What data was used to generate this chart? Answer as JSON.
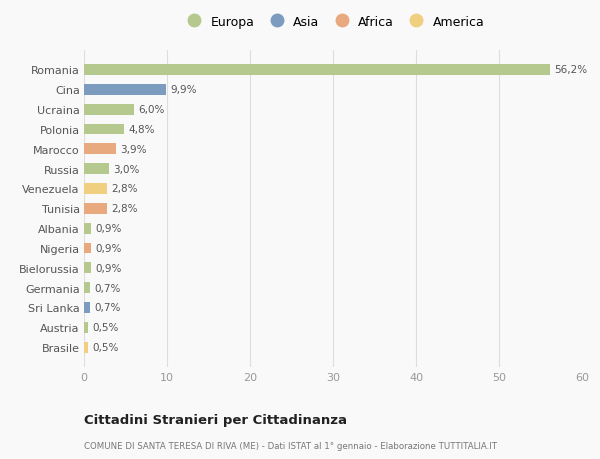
{
  "countries": [
    "Romania",
    "Cina",
    "Ucraina",
    "Polonia",
    "Marocco",
    "Russia",
    "Venezuela",
    "Tunisia",
    "Albania",
    "Nigeria",
    "Bielorussia",
    "Germania",
    "Sri Lanka",
    "Austria",
    "Brasile"
  ],
  "values": [
    56.2,
    9.9,
    6.0,
    4.8,
    3.9,
    3.0,
    2.8,
    2.8,
    0.9,
    0.9,
    0.9,
    0.7,
    0.7,
    0.5,
    0.5
  ],
  "labels": [
    "56,2%",
    "9,9%",
    "6,0%",
    "4,8%",
    "3,9%",
    "3,0%",
    "2,8%",
    "2,8%",
    "0,9%",
    "0,9%",
    "0,9%",
    "0,7%",
    "0,7%",
    "0,5%",
    "0,5%"
  ],
  "continents": [
    "Europa",
    "Asia",
    "Europa",
    "Europa",
    "Africa",
    "Europa",
    "America",
    "Africa",
    "Europa",
    "Africa",
    "Europa",
    "Europa",
    "Asia",
    "Europa",
    "America"
  ],
  "colors": {
    "Europa": "#b5c98e",
    "Asia": "#7b9bbf",
    "Africa": "#e8a97e",
    "America": "#f0d080"
  },
  "legend_order": [
    "Europa",
    "Asia",
    "Africa",
    "America"
  ],
  "xlim": [
    0,
    60
  ],
  "xticks": [
    0,
    10,
    20,
    30,
    40,
    50,
    60
  ],
  "title": "Cittadini Stranieri per Cittadinanza",
  "subtitle": "COMUNE DI SANTA TERESA DI RIVA (ME) - Dati ISTAT al 1° gennaio - Elaborazione TUTTITALIA.IT",
  "background_color": "#f9f9f9",
  "grid_color": "#dddddd",
  "bar_height": 0.55
}
